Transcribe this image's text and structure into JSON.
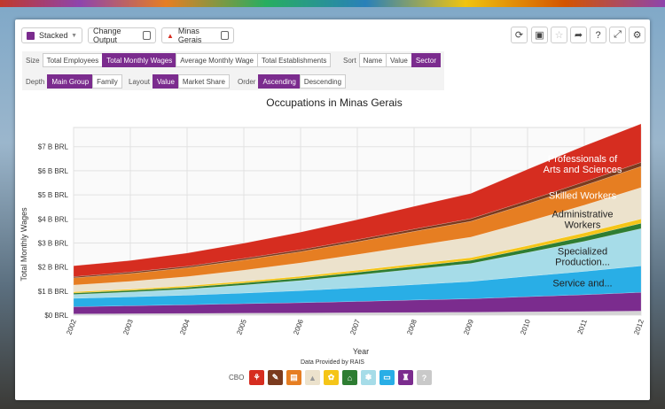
{
  "toolbar": {
    "viz_type_label": "Stacked",
    "change_output_label": "Change Output",
    "location_label": "Minas Gerais"
  },
  "controls": {
    "size": {
      "label": "Size",
      "options": [
        "Total Employees",
        "Total Monthly Wages",
        "Average Monthly Wage",
        "Total Establishments"
      ],
      "selected": 1
    },
    "sort": {
      "label": "Sort",
      "options": [
        "Name",
        "Value",
        "Sector"
      ],
      "selected": 2
    },
    "depth": {
      "label": "Depth",
      "options": [
        "Main Group",
        "Family"
      ],
      "selected": 0
    },
    "layout": {
      "label": "Layout",
      "options": [
        "Value",
        "Market Share"
      ],
      "selected": 0
    },
    "order": {
      "label": "Order",
      "options": [
        "Ascending",
        "Descending"
      ],
      "selected": 0
    }
  },
  "footer": {
    "source_text": "Data Provided by RAIS",
    "legend_label": "CBO"
  },
  "legend_colors": [
    "#d62d20",
    "#7b3b1e",
    "#e67e22",
    "#ece2cc",
    "#f5c518",
    "#2e7d32",
    "#a6dce8",
    "#29aee6",
    "#7b2c8e",
    "#c9c9c9"
  ],
  "chart_data": {
    "type": "area",
    "title": "Occupations in Minas Gerais",
    "xlabel": "Year",
    "ylabel": "Total Monthly Wages",
    "x": [
      2002,
      2003,
      2004,
      2005,
      2006,
      2007,
      2008,
      2009,
      2010,
      2011,
      2012
    ],
    "yticks": [
      "$0 BRL",
      "$1 B BRL",
      "$2 B BRL",
      "$3 B BRL",
      "$4 B BRL",
      "$5 B BRL",
      "$6 B BRL",
      "$7 B BRL"
    ],
    "ylim": [
      0,
      7.8
    ],
    "grid": true,
    "series": [
      {
        "color": "#d4d4d4",
        "values": [
          0.05,
          0.06,
          0.07,
          0.08,
          0.09,
          0.1,
          0.11,
          0.12,
          0.14,
          0.15,
          0.17
        ]
      },
      {
        "color": "#7b2c8e",
        "values": [
          0.3,
          0.33,
          0.36,
          0.4,
          0.43,
          0.47,
          0.52,
          0.56,
          0.63,
          0.7,
          0.78
        ]
      },
      {
        "name": "Service and...",
        "color": "#29aee6",
        "values": [
          0.35,
          0.37,
          0.4,
          0.44,
          0.5,
          0.57,
          0.64,
          0.72,
          0.85,
          0.97,
          1.1
        ]
      },
      {
        "name": "Specialized Production...",
        "color": "#a6dce8",
        "values": [
          0.16,
          0.2,
          0.25,
          0.33,
          0.42,
          0.53,
          0.64,
          0.75,
          0.98,
          1.25,
          1.55
        ]
      },
      {
        "color": "#2e7d32",
        "values": [
          0.06,
          0.07,
          0.08,
          0.09,
          0.1,
          0.11,
          0.12,
          0.13,
          0.16,
          0.19,
          0.22
        ]
      },
      {
        "color": "#f5c518",
        "values": [
          0.05,
          0.05,
          0.06,
          0.07,
          0.08,
          0.09,
          0.1,
          0.11,
          0.13,
          0.16,
          0.18
        ]
      },
      {
        "name": "Administrative Workers",
        "color": "#ece2cc",
        "values": [
          0.28,
          0.32,
          0.38,
          0.46,
          0.55,
          0.65,
          0.75,
          0.85,
          1.0,
          1.15,
          1.3
        ]
      },
      {
        "name": "Skilled Workers",
        "color": "#e67e22",
        "values": [
          0.3,
          0.33,
          0.37,
          0.42,
          0.47,
          0.53,
          0.6,
          0.66,
          0.74,
          0.82,
          0.88
        ]
      },
      {
        "color": "#7b3b1e",
        "values": [
          0.05,
          0.06,
          0.06,
          0.07,
          0.08,
          0.09,
          0.1,
          0.11,
          0.13,
          0.15,
          0.17
        ]
      },
      {
        "name": "Professionals of Arts and Sciences",
        "color": "#d62d20",
        "values": [
          0.45,
          0.48,
          0.55,
          0.63,
          0.73,
          0.83,
          0.94,
          1.05,
          1.3,
          1.5,
          1.6
        ]
      }
    ]
  }
}
